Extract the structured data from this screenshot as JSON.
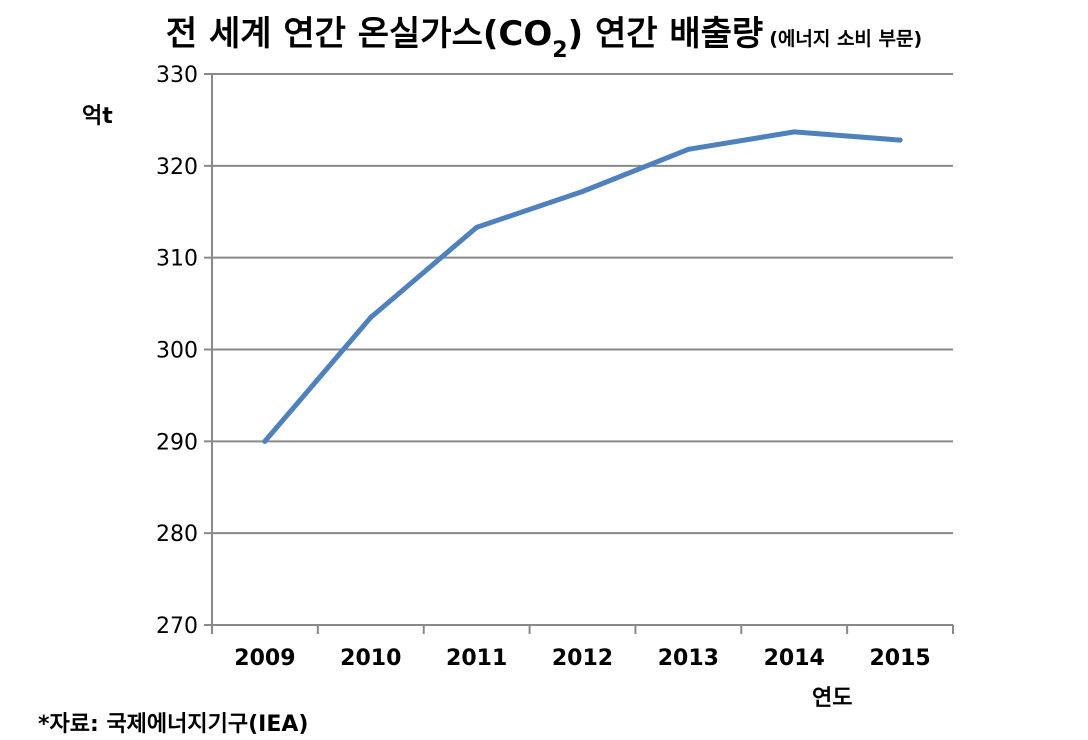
{
  "chart_data": {
    "type": "line",
    "title": "전 세계 연간 온실가스(CO",
    "title_subscript": "2",
    "title_suffix": ") 연간 배출량",
    "title_note": "(에너지 소비 부문)",
    "ylabel": "억t",
    "xlabel": "연도",
    "source": "*자료: 국제에너지기구(IEA)",
    "categories": [
      "2009",
      "2010",
      "2011",
      "2012",
      "2013",
      "2014",
      "2015"
    ],
    "series": [
      {
        "values": [
          290,
          303.5,
          313.3,
          317.2,
          321.8,
          323.7,
          322.8
        ]
      }
    ],
    "ylim": [
      270,
      330
    ],
    "yticks": [
      270,
      280,
      290,
      300,
      310,
      320,
      330
    ],
    "grid": true,
    "legend": "none",
    "colors": {
      "line": "#4f81bd",
      "grid": "#898989",
      "axis": "#898989"
    }
  }
}
